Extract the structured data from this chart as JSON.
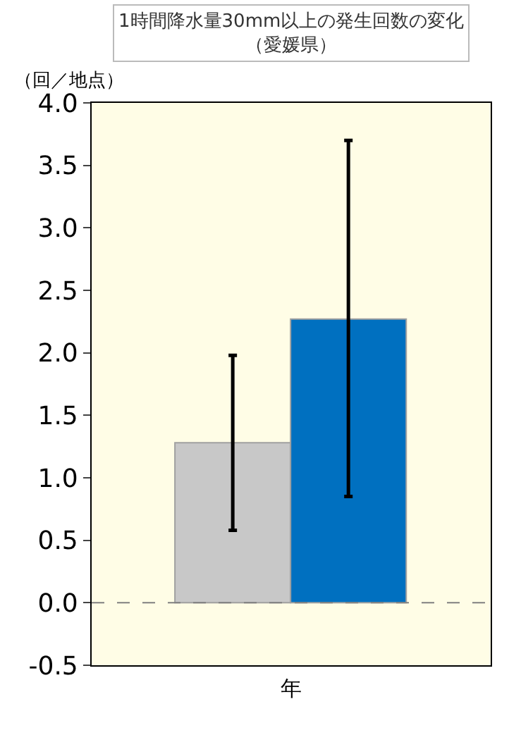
{
  "chart_data": {
    "type": "bar",
    "title": "1時間降水量30mm以上の発生回数の変化",
    "subtitle": "（愛媛県）",
    "ylabel": "（回／地点）",
    "xlabel": "年",
    "categories": [
      null,
      null
    ],
    "values": [
      1.28,
      2.27
    ],
    "colors": [
      "#c8c8c8",
      "#0070c0"
    ],
    "errors": [
      [
        0.58,
        1.98
      ],
      [
        0.85,
        3.7
      ]
    ],
    "ylim": [
      -0.5,
      4.0
    ],
    "yticks": [
      {
        "value": -0.5,
        "label": "-0.5"
      },
      {
        "value": 0,
        "label": "0.0"
      },
      {
        "value": 0.5,
        "label": "0.5"
      },
      {
        "value": 1,
        "label": "1.0"
      },
      {
        "value": 1.5,
        "label": "1.5"
      },
      {
        "value": 2,
        "label": "2.0"
      },
      {
        "value": 2.5,
        "label": "2.5"
      },
      {
        "value": 3,
        "label": "3.0"
      },
      {
        "value": 3.5,
        "label": "3.5"
      },
      {
        "value": 4,
        "label": "4.0"
      }
    ],
    "ref_lines": [
      {
        "axis": "y",
        "value": 0,
        "label": null,
        "color": "#808080",
        "line_style": "dashed"
      }
    ],
    "grid": false
  }
}
